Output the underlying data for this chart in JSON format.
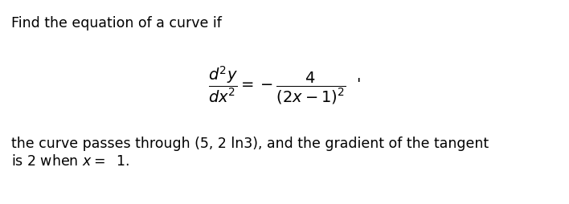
{
  "title_text": "Find the equation of a curve if",
  "body_text_line1": "the curve passes through (5, 2 ln3), and the gradient of the tangent",
  "body_text_line2": "is 2 when $x =\\;$ 1.",
  "background_color": "#ffffff",
  "text_color": "#000000",
  "title_fontsize": 12.5,
  "equation_fontsize": 14,
  "body_fontsize": 12.5,
  "fig_width": 7.08,
  "fig_height": 2.54,
  "dpi": 100
}
